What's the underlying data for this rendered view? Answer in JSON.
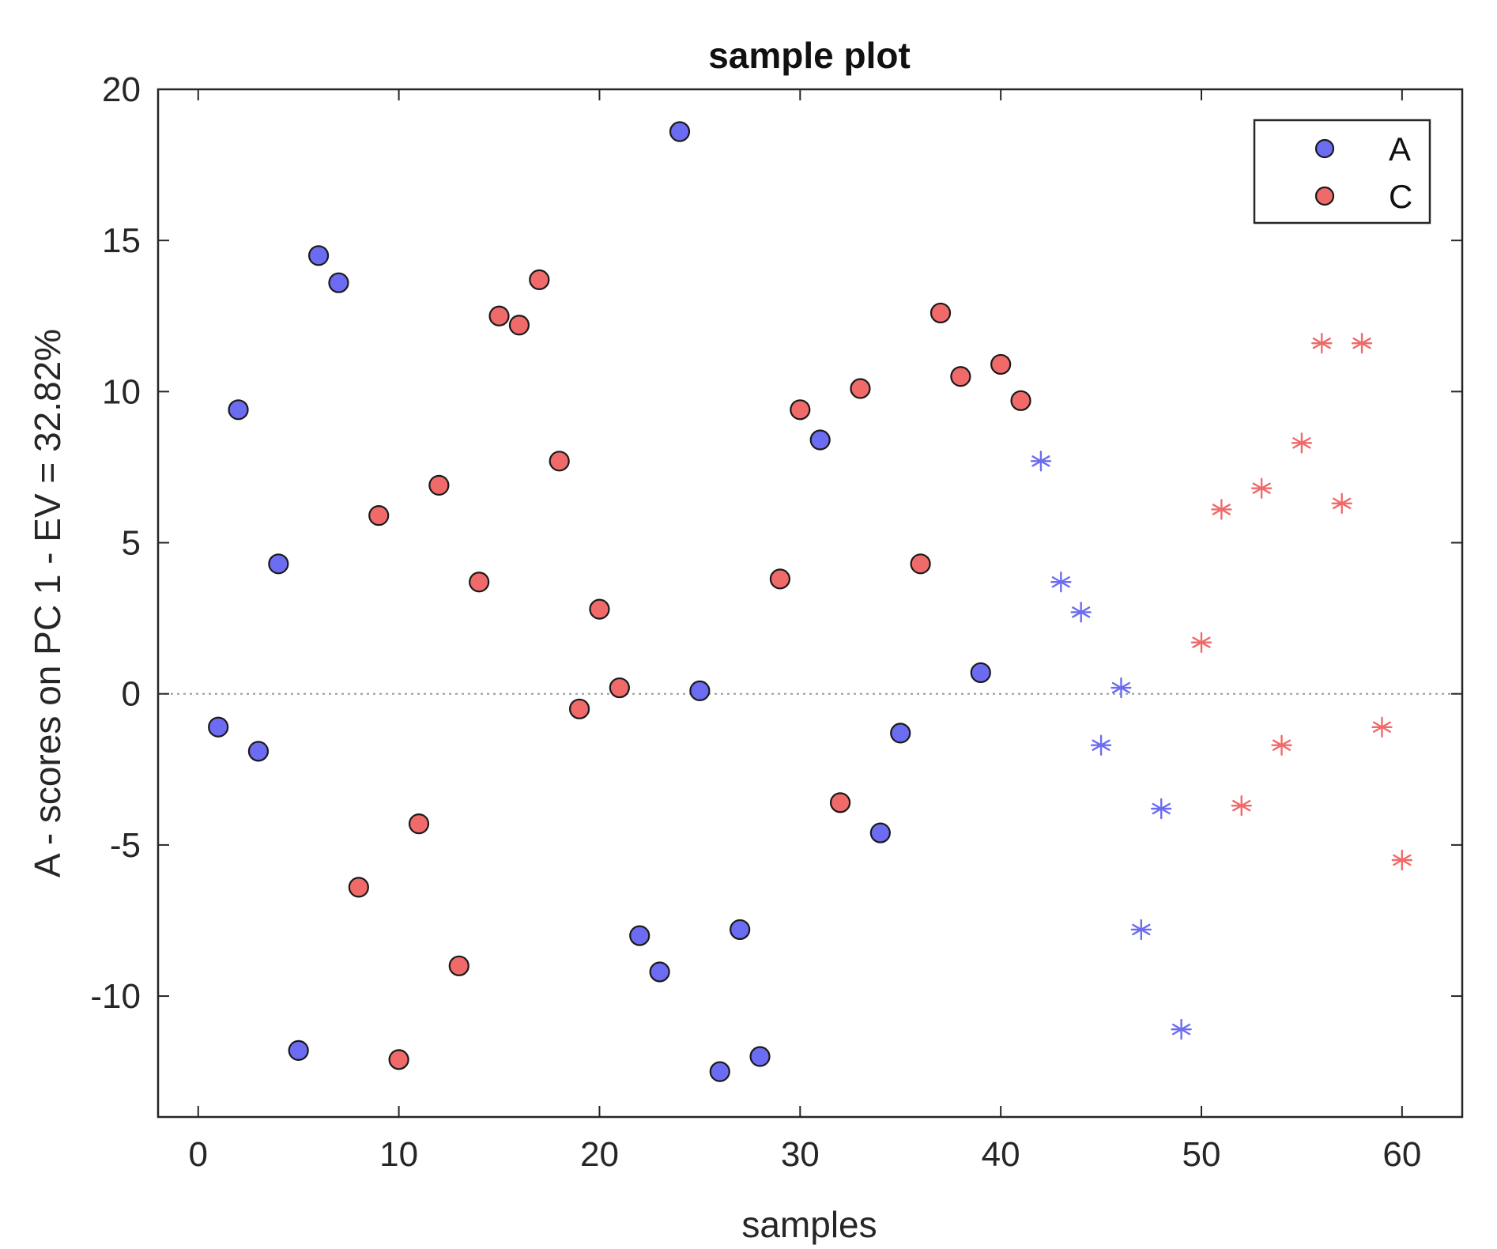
{
  "chart_data": {
    "type": "scatter",
    "title": "sample plot",
    "xlabel": "samples",
    "ylabel": "A - scores on PC 1 - EV = 32.82%",
    "xlim": [
      -2,
      63
    ],
    "ylim": [
      -14,
      20
    ],
    "x_ticks": [
      0,
      10,
      20,
      30,
      40,
      50,
      60
    ],
    "y_ticks": [
      -10,
      -5,
      0,
      5,
      10,
      15,
      20
    ],
    "reference_line": {
      "y": 0,
      "style": "dotted"
    },
    "grid": false,
    "legend_position": "top-right",
    "colors": {
      "A": "#6c6cf2",
      "C": "#f06a6a",
      "marker_edge": "#1a1a1a",
      "reference": "#999999"
    },
    "series": [
      {
        "name": "A",
        "marker": "circle",
        "x": [
          1,
          2,
          3,
          4,
          5,
          6,
          7,
          22,
          23,
          24,
          25,
          26,
          27,
          28,
          31,
          34,
          35,
          39
        ],
        "y": [
          -1.1,
          9.4,
          -1.9,
          4.3,
          -11.8,
          14.5,
          13.6,
          -8.0,
          -9.2,
          18.6,
          0.1,
          -12.5,
          -7.8,
          -12.0,
          8.4,
          -4.6,
          -1.3,
          0.7
        ]
      },
      {
        "name": "C",
        "marker": "circle",
        "x": [
          8,
          9,
          10,
          11,
          12,
          13,
          14,
          15,
          16,
          17,
          18,
          19,
          20,
          21,
          29,
          30,
          32,
          33,
          36,
          37,
          38,
          40,
          41
        ],
        "y": [
          -6.4,
          5.9,
          -12.1,
          -4.3,
          6.9,
          -9.0,
          3.7,
          12.5,
          12.2,
          13.7,
          7.7,
          -0.5,
          2.8,
          0.2,
          3.8,
          9.4,
          -3.6,
          10.1,
          4.3,
          12.6,
          10.5,
          10.9,
          9.7
        ]
      },
      {
        "marker": "asterisk",
        "color_of": "A",
        "x": [
          42,
          43,
          44,
          45,
          46,
          47,
          48,
          49
        ],
        "y": [
          7.7,
          3.7,
          2.7,
          -1.7,
          0.2,
          -7.8,
          -3.8,
          -11.1
        ]
      },
      {
        "marker": "asterisk",
        "color_of": "C",
        "x": [
          50,
          51,
          52,
          53,
          54,
          55,
          56,
          57,
          58,
          59,
          60
        ],
        "y": [
          1.7,
          6.1,
          -3.7,
          6.8,
          -1.7,
          8.3,
          11.6,
          6.3,
          11.6,
          -1.1,
          -5.5
        ]
      }
    ],
    "legend": [
      {
        "label": "A",
        "series": "A"
      },
      {
        "label": "C",
        "series": "C"
      }
    ]
  }
}
